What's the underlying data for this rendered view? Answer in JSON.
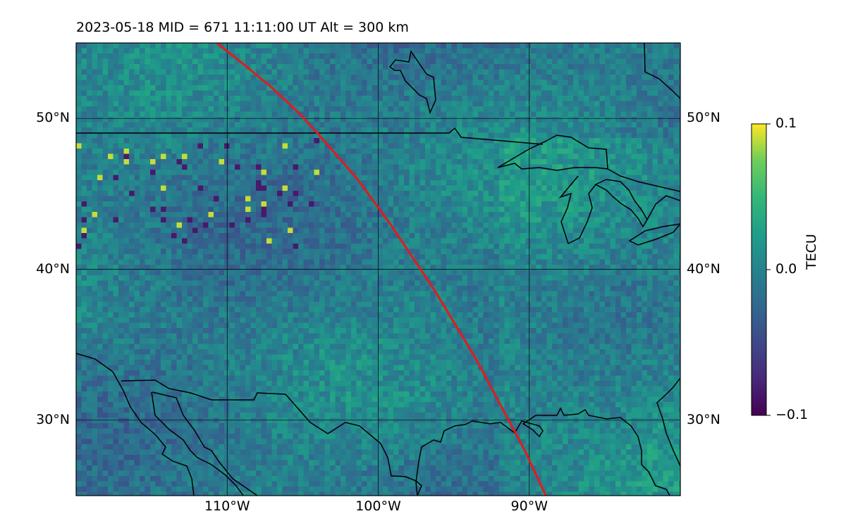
{
  "title": {
    "date": "2023-05-18",
    "mid_label": "MID = 671",
    "time_label": "11:11:00  UT",
    "alt_label": "Alt = 300 km",
    "full": "2023-05-18  MID = 671    11:11:00  UT  Alt = 300 km"
  },
  "map": {
    "lon_range": [
      -120,
      -80
    ],
    "lat_range": [
      25,
      55
    ],
    "lat_ticks": [
      {
        "value": 30,
        "label": "30°N"
      },
      {
        "value": 40,
        "label": "40°N"
      },
      {
        "value": 50,
        "label": "50°N"
      }
    ],
    "lon_ticks": [
      {
        "value": -110,
        "label": "110°W"
      },
      {
        "value": -100,
        "label": "100°W"
      },
      {
        "value": -90,
        "label": "90°W"
      }
    ],
    "gridlines": true,
    "field": "TEC perturbation",
    "colormap": "viridis",
    "coastline_color": "#000000",
    "track_color": "#e41a1c",
    "track": [
      [
        -110.7,
        55.0
      ],
      [
        -108.8,
        53.5
      ],
      [
        -107.0,
        52.0
      ],
      [
        -105.4,
        50.5
      ],
      [
        -104.0,
        49.0
      ],
      [
        -102.7,
        47.5
      ],
      [
        -101.4,
        46.0
      ],
      [
        -100.3,
        44.5
      ],
      [
        -99.2,
        43.0
      ],
      [
        -98.2,
        41.5
      ],
      [
        -97.2,
        40.0
      ],
      [
        -96.2,
        38.5
      ],
      [
        -95.3,
        37.0
      ],
      [
        -94.4,
        35.5
      ],
      [
        -93.5,
        34.0
      ],
      [
        -92.7,
        32.5
      ],
      [
        -91.9,
        31.0
      ],
      [
        -91.1,
        29.5
      ],
      [
        -90.3,
        28.0
      ],
      [
        -89.6,
        26.5
      ],
      [
        -88.9,
        25.0
      ]
    ]
  },
  "colorbar": {
    "label": "TECU",
    "min": -0.1,
    "max": 0.1,
    "ticks": [
      {
        "value": 0.1,
        "label": "0.1"
      },
      {
        "value": 0.0,
        "label": "0.0"
      },
      {
        "value": -0.1,
        "label": "−0.1"
      }
    ]
  }
}
